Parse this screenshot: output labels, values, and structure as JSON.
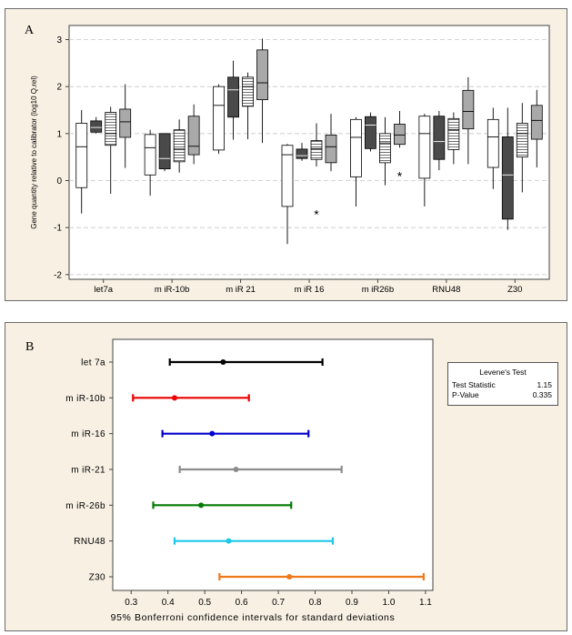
{
  "panel_a": {
    "letter": "A"
  },
  "panel_b": {
    "letter": "B"
  },
  "chart_data": [
    {
      "type": "boxplot",
      "ylabel": "Gene quantity relative to calibrator (log10 Q.rel)",
      "xlabel": "",
      "ylim": [
        -2.1,
        3.3
      ],
      "yticks": [
        -2,
        -1,
        0,
        1,
        2,
        3
      ],
      "grid": "horizontal dashed",
      "categories": [
        "let7a",
        "miR-10b",
        "miR 21",
        "miR 16",
        "miR26b",
        "RNU48",
        "Z30"
      ],
      "category_labels": [
        "let7a",
        "m iR-10b",
        "m iR 21",
        "m iR 16",
        "m iR26b",
        "RNU48",
        "Z30"
      ],
      "box_fills": [
        "#ffffff",
        "#4a4a4a",
        "hatch",
        "#a9a9a9"
      ],
      "boxes": [
        [
          {
            "min": -0.7,
            "q1": -0.15,
            "median": 0.72,
            "q3": 1.22,
            "max": 1.5
          },
          {
            "min": 1.0,
            "q1": 1.03,
            "median": 1.13,
            "q3": 1.27,
            "max": 1.35
          },
          {
            "min": -0.28,
            "q1": 0.75,
            "median": 1.0,
            "q3": 1.45,
            "max": 1.57
          },
          {
            "min": 0.27,
            "q1": 0.92,
            "median": 1.25,
            "q3": 1.52,
            "max": 2.05
          }
        ],
        [
          {
            "min": -0.32,
            "q1": 0.12,
            "median": 0.7,
            "q3": 0.98,
            "max": 1.08
          },
          {
            "min": 0.2,
            "q1": 0.25,
            "median": 0.47,
            "q3": 1.0,
            "max": 1.0
          },
          {
            "min": 0.17,
            "q1": 0.4,
            "median": 0.67,
            "q3": 1.08,
            "max": 1.3
          },
          {
            "min": 0.35,
            "q1": 0.55,
            "median": 0.73,
            "q3": 1.37,
            "max": 1.62
          }
        ],
        [
          {
            "min": 0.57,
            "q1": 0.65,
            "median": 1.6,
            "q3": 2.0,
            "max": 2.05
          },
          {
            "min": 0.87,
            "q1": 1.35,
            "median": 1.93,
            "q3": 2.2,
            "max": 2.55
          },
          {
            "min": 0.88,
            "q1": 1.58,
            "median": 2.0,
            "q3": 2.2,
            "max": 2.3
          },
          {
            "min": 0.8,
            "q1": 1.72,
            "median": 2.08,
            "q3": 2.78,
            "max": 3.02
          }
        ],
        [
          {
            "min": -1.35,
            "q1": -0.55,
            "median": 0.55,
            "q3": 0.75,
            "max": 0.78
          },
          {
            "min": 0.42,
            "q1": 0.47,
            "median": 0.53,
            "q3": 0.67,
            "max": 0.8
          },
          {
            "min": 0.3,
            "q1": 0.45,
            "median": 0.68,
            "q3": 0.85,
            "max": 1.22
          },
          {
            "min": 0.2,
            "q1": 0.38,
            "median": 0.72,
            "q3": 0.97,
            "max": 1.42
          }
        ],
        [
          {
            "min": -0.55,
            "q1": 0.08,
            "median": 0.92,
            "q3": 1.3,
            "max": 1.35
          },
          {
            "min": 0.62,
            "q1": 0.68,
            "median": 1.18,
            "q3": 1.36,
            "max": 1.45
          },
          {
            "min": -0.1,
            "q1": 0.38,
            "median": 0.8,
            "q3": 1.0,
            "max": 1.35
          },
          {
            "min": 0.7,
            "q1": 0.77,
            "median": 0.97,
            "q3": 1.2,
            "max": 1.48
          }
        ],
        [
          {
            "min": -0.55,
            "q1": 0.05,
            "median": 1.0,
            "q3": 1.37,
            "max": 1.42
          },
          {
            "min": 0.22,
            "q1": 0.45,
            "median": 0.83,
            "q3": 1.37,
            "max": 1.48
          },
          {
            "min": 0.35,
            "q1": 0.66,
            "median": 1.08,
            "q3": 1.32,
            "max": 1.45
          },
          {
            "min": 0.35,
            "q1": 1.1,
            "median": 1.47,
            "q3": 1.92,
            "max": 2.2
          }
        ],
        [
          {
            "min": -0.18,
            "q1": 0.28,
            "median": 0.93,
            "q3": 1.3,
            "max": 1.55
          },
          {
            "min": -1.05,
            "q1": -0.82,
            "median": 0.12,
            "q3": 0.93,
            "max": 1.55
          },
          {
            "min": -0.25,
            "q1": 0.5,
            "median": 1.0,
            "q3": 1.22,
            "max": 1.65
          },
          {
            "min": 0.28,
            "q1": 0.88,
            "median": 1.28,
            "q3": 1.6,
            "max": 1.93
          }
        ]
      ],
      "outliers": [
        {
          "category": 3,
          "box": 2,
          "y": -0.7
        },
        {
          "category": 4,
          "box": 3,
          "y": 0.12
        }
      ]
    },
    {
      "type": "interval",
      "xlabel": "95%  Bonferroni confidence intervals for standard deviations",
      "xlim": [
        0.25,
        1.12
      ],
      "xticks": [
        0.3,
        0.4,
        0.5,
        0.6,
        0.7,
        0.8,
        0.9,
        1.0,
        1.1
      ],
      "xtick_labels": [
        "0.3",
        "0.4",
        "0.5",
        "0.6",
        "0.7",
        "0.8",
        "0.9",
        "1.0",
        "1.1"
      ],
      "categories": [
        "let 7a",
        "m iR-10b",
        "m iR-16",
        "m iR-21",
        "m iR-26b",
        "RNU48",
        "Z30"
      ],
      "intervals": [
        {
          "low": 0.405,
          "estimate": 0.55,
          "high": 0.82,
          "color": "#000000"
        },
        {
          "low": 0.305,
          "estimate": 0.418,
          "high": 0.62,
          "color": "#ee0000"
        },
        {
          "low": 0.385,
          "estimate": 0.52,
          "high": 0.782,
          "color": "#0000cc"
        },
        {
          "low": 0.432,
          "estimate": 0.585,
          "high": 0.872,
          "color": "#8c8c8c"
        },
        {
          "low": 0.36,
          "estimate": 0.49,
          "high": 0.735,
          "color": "#007a00"
        },
        {
          "low": 0.418,
          "estimate": 0.565,
          "high": 0.848,
          "color": "#1ec8e8"
        },
        {
          "low": 0.54,
          "estimate": 0.73,
          "high": 1.095,
          "color": "#f07818"
        }
      ],
      "levene": {
        "title": "Levene's Test",
        "statistic_label": "Test Statistic",
        "statistic_value": "1.15",
        "pvalue_label": "P-Value",
        "pvalue_value": "0.335"
      }
    }
  ]
}
